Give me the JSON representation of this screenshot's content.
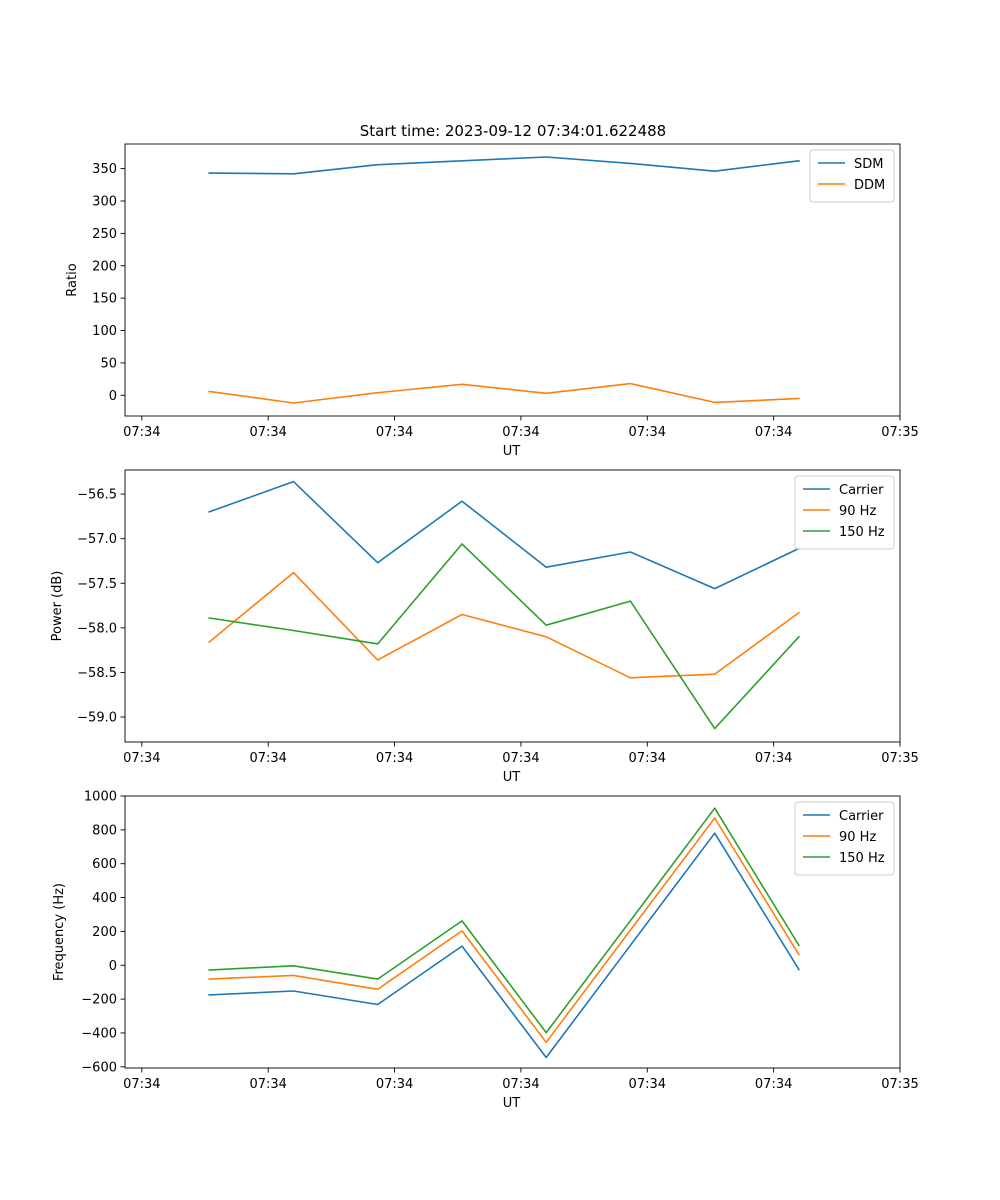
{
  "figure_title": "Start time: 2023-09-12 07:34:01.622488",
  "colors": {
    "blue": "#1f77b4",
    "orange": "#ff7f0e",
    "green": "#2ca02c"
  },
  "chart_data": [
    {
      "type": "line",
      "title": "Start time: 2023-09-12 07:34:01.622488",
      "xlabel": "UT",
      "ylabel": "Ratio",
      "x": [
        1,
        2,
        3,
        4,
        5,
        6,
        7,
        8
      ],
      "xlim": [
        0,
        9.2
      ],
      "xticks": [
        0.2,
        1.7,
        3.2,
        4.7,
        6.2,
        7.7,
        9.2
      ],
      "xtick_labels": [
        "07:34",
        "07:34",
        "07:34",
        "07:34",
        "07:34",
        "07:34",
        "07:35"
      ],
      "ylim": [
        -32,
        388
      ],
      "yticks": [
        0,
        50,
        100,
        150,
        200,
        250,
        300,
        350
      ],
      "ytick_labels": [
        "0",
        "50",
        "100",
        "150",
        "200",
        "250",
        "300",
        "350"
      ],
      "legend_position": "top-right",
      "series": [
        {
          "name": "SDM",
          "color": "#1f77b4",
          "values": [
            343,
            342,
            356,
            362,
            368,
            358,
            346,
            362
          ]
        },
        {
          "name": "DDM",
          "color": "#ff7f0e",
          "values": [
            6,
            -12,
            4,
            17,
            3,
            18,
            -11,
            -5
          ]
        }
      ]
    },
    {
      "type": "line",
      "title": "",
      "xlabel": "UT",
      "ylabel": "Power (dB)",
      "x": [
        1,
        2,
        3,
        4,
        5,
        6,
        7,
        8
      ],
      "xlim": [
        0,
        9.2
      ],
      "xticks": [
        0.2,
        1.7,
        3.2,
        4.7,
        6.2,
        7.7,
        9.2
      ],
      "xtick_labels": [
        "07:34",
        "07:34",
        "07:34",
        "07:34",
        "07:34",
        "07:34",
        "07:35"
      ],
      "ylim": [
        -59.28,
        -56.23
      ],
      "yticks": [
        -59.0,
        -58.5,
        -58.0,
        -57.5,
        -57.0,
        -56.5
      ],
      "ytick_labels": [
        "−59.0",
        "−58.5",
        "−58.0",
        "−57.5",
        "−57.0",
        "−56.5"
      ],
      "legend_position": "top-right",
      "series": [
        {
          "name": "Carrier",
          "color": "#1f77b4",
          "values": [
            -56.7,
            -56.36,
            -57.27,
            -56.58,
            -57.32,
            -57.15,
            -57.56,
            -57.11
          ]
        },
        {
          "name": "90 Hz",
          "color": "#ff7f0e",
          "values": [
            -58.16,
            -57.38,
            -58.36,
            -57.85,
            -58.1,
            -58.56,
            -58.52,
            -57.83
          ]
        },
        {
          "name": "150 Hz",
          "color": "#2ca02c",
          "values": [
            -57.89,
            -58.03,
            -58.18,
            -57.06,
            -57.97,
            -57.7,
            -59.13,
            -58.1
          ]
        }
      ]
    },
    {
      "type": "line",
      "title": "",
      "xlabel": "UT",
      "ylabel": "Frequency (Hz)",
      "x": [
        1,
        2,
        3,
        4,
        5,
        6,
        7,
        8
      ],
      "xlim": [
        0,
        9.2
      ],
      "xticks": [
        0.2,
        1.7,
        3.2,
        4.7,
        6.2,
        7.7,
        9.2
      ],
      "xtick_labels": [
        "07:34",
        "07:34",
        "07:34",
        "07:34",
        "07:34",
        "07:34",
        "07:35"
      ],
      "ylim": [
        -607,
        1000
      ],
      "yticks": [
        -600,
        -400,
        -200,
        0,
        200,
        400,
        600,
        800,
        1000
      ],
      "ytick_labels": [
        "−600",
        "−400",
        "−200",
        "0",
        "200",
        "400",
        "600",
        "800",
        "1000"
      ],
      "legend_position": "top-right",
      "series": [
        {
          "name": "Carrier",
          "color": "#1f77b4",
          "values": [
            -175,
            -152,
            -232,
            113,
            -545,
            118,
            780,
            -25
          ]
        },
        {
          "name": "90 Hz",
          "color": "#ff7f0e",
          "values": [
            -82,
            -60,
            -142,
            203,
            -455,
            208,
            870,
            63
          ]
        },
        {
          "name": "150 Hz",
          "color": "#2ca02c",
          "values": [
            -28,
            -3,
            -82,
            262,
            -398,
            263,
            928,
            118
          ]
        }
      ]
    }
  ]
}
